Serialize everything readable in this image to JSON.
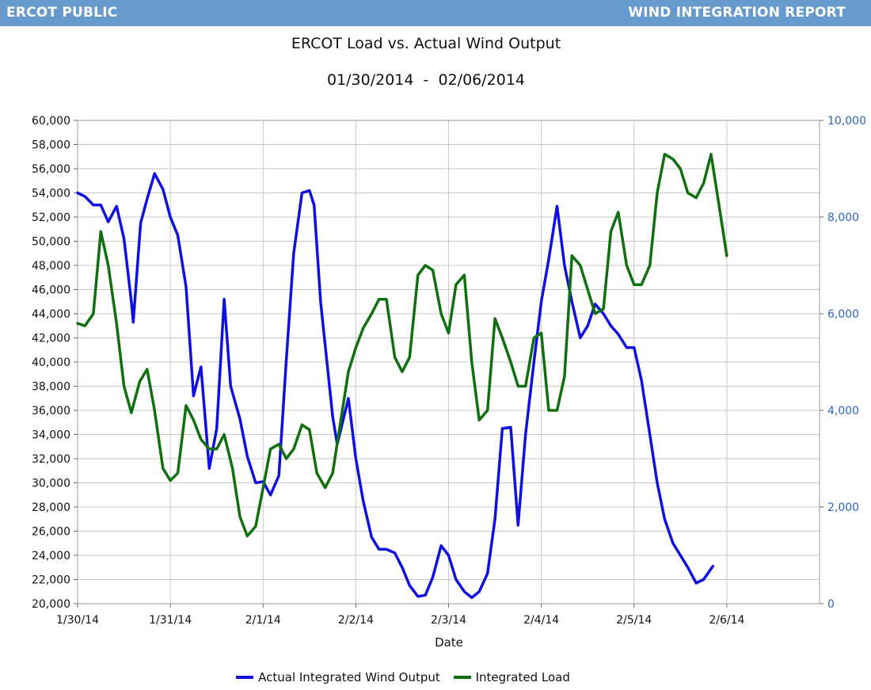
{
  "header": {
    "left": "ERCOT PUBLIC",
    "right": "WIND INTEGRATION REPORT",
    "color": "#6699cc"
  },
  "chart_data": {
    "type": "line",
    "title": "ERCOT Load vs. Actual Wind Output",
    "subtitle": "01/30/2014  -  02/06/2014",
    "xlabel": "Date",
    "ylabel_left": "",
    "ylabel_right": "",
    "x_ticks": [
      "1/30/14",
      "1/31/14",
      "2/1/14",
      "2/2/14",
      "2/3/14",
      "2/4/14",
      "2/5/14",
      "2/6/14"
    ],
    "x_range_days": [
      0,
      8
    ],
    "y_left": {
      "ticks": [
        "60,000",
        "58,000",
        "56,000",
        "54,000",
        "52,000",
        "50,000",
        "48,000",
        "46,000",
        "44,000",
        "42,000",
        "40,000",
        "38,000",
        "36,000",
        "34,000",
        "32,000",
        "30,000",
        "28,000",
        "26,000",
        "24,000",
        "22,000",
        "20,000"
      ],
      "min": 20000,
      "max": 60000
    },
    "y_right": {
      "ticks": [
        "10,000",
        "8,000",
        "6,000",
        "4,000",
        "2,000",
        "0"
      ],
      "min": 0,
      "max": 10000
    },
    "grid": true,
    "legend_position": "bottom",
    "series": [
      {
        "name": "Actual Integrated Wind Output",
        "axis": "left",
        "color": "#1010e0",
        "points": [
          [
            0,
            54000
          ],
          [
            0.08,
            53700
          ],
          [
            0.17,
            53000
          ],
          [
            0.25,
            53000
          ],
          [
            0.33,
            51600
          ],
          [
            0.42,
            52900
          ],
          [
            0.5,
            50200
          ],
          [
            0.58,
            45000
          ],
          [
            0.6,
            43300
          ],
          [
            0.68,
            51500
          ],
          [
            0.75,
            53500
          ],
          [
            0.83,
            55600
          ],
          [
            0.92,
            54300
          ],
          [
            1.0,
            52000
          ],
          [
            1.08,
            50500
          ],
          [
            1.17,
            46200
          ],
          [
            1.25,
            37200
          ],
          [
            1.33,
            39600
          ],
          [
            1.42,
            31200
          ],
          [
            1.5,
            34500
          ],
          [
            1.58,
            45200
          ],
          [
            1.65,
            38000
          ],
          [
            1.75,
            35300
          ],
          [
            1.83,
            32200
          ],
          [
            1.92,
            30000
          ],
          [
            2.0,
            30100
          ],
          [
            2.08,
            29000
          ],
          [
            2.17,
            30600
          ],
          [
            2.25,
            40100
          ],
          [
            2.33,
            49000
          ],
          [
            2.42,
            54000
          ],
          [
            2.5,
            54200
          ],
          [
            2.55,
            53000
          ],
          [
            2.62,
            45000
          ],
          [
            2.75,
            35500
          ],
          [
            2.8,
            33200
          ],
          [
            2.92,
            37000
          ],
          [
            3.0,
            32000
          ],
          [
            3.08,
            28500
          ],
          [
            3.17,
            25500
          ],
          [
            3.25,
            24500
          ],
          [
            3.33,
            24500
          ],
          [
            3.42,
            24200
          ],
          [
            3.5,
            23000
          ],
          [
            3.58,
            21500
          ],
          [
            3.67,
            20600
          ],
          [
            3.75,
            20700
          ],
          [
            3.83,
            22200
          ],
          [
            3.92,
            24800
          ],
          [
            4.0,
            24000
          ],
          [
            4.08,
            22000
          ],
          [
            4.17,
            21000
          ],
          [
            4.25,
            20500
          ],
          [
            4.33,
            21000
          ],
          [
            4.42,
            22500
          ],
          [
            4.5,
            27000
          ],
          [
            4.58,
            34500
          ],
          [
            4.67,
            34600
          ],
          [
            4.75,
            26500
          ],
          [
            4.83,
            34000
          ],
          [
            4.92,
            40000
          ],
          [
            5.0,
            45000
          ],
          [
            5.08,
            48500
          ],
          [
            5.17,
            52900
          ],
          [
            5.25,
            48000
          ],
          [
            5.33,
            45000
          ],
          [
            5.42,
            42000
          ],
          [
            5.5,
            43000
          ],
          [
            5.58,
            44800
          ],
          [
            5.67,
            44000
          ],
          [
            5.75,
            43000
          ],
          [
            5.83,
            42300
          ],
          [
            5.92,
            41200
          ],
          [
            6.0,
            41200
          ],
          [
            6.08,
            38500
          ],
          [
            6.17,
            34000
          ],
          [
            6.25,
            30000
          ],
          [
            6.33,
            27000
          ],
          [
            6.42,
            25000
          ],
          [
            6.5,
            24000
          ],
          [
            6.58,
            23000
          ],
          [
            6.67,
            21700
          ],
          [
            6.75,
            22000
          ],
          [
            6.85,
            23100
          ]
        ]
      },
      {
        "name": "Integrated Load",
        "axis": "right",
        "color": "#107010",
        "points": [
          [
            0,
            5800
          ],
          [
            0.08,
            5750
          ],
          [
            0.17,
            6000
          ],
          [
            0.25,
            7700
          ],
          [
            0.33,
            7000
          ],
          [
            0.42,
            5800
          ],
          [
            0.5,
            4500
          ],
          [
            0.58,
            3950
          ],
          [
            0.67,
            4600
          ],
          [
            0.75,
            4850
          ],
          [
            0.83,
            4000
          ],
          [
            0.92,
            2800
          ],
          [
            1.0,
            2550
          ],
          [
            1.08,
            2700
          ],
          [
            1.17,
            4100
          ],
          [
            1.25,
            3800
          ],
          [
            1.33,
            3400
          ],
          [
            1.42,
            3200
          ],
          [
            1.5,
            3200
          ],
          [
            1.58,
            3500
          ],
          [
            1.67,
            2800
          ],
          [
            1.75,
            1800
          ],
          [
            1.83,
            1400
          ],
          [
            1.92,
            1600
          ],
          [
            2.0,
            2400
          ],
          [
            2.08,
            3200
          ],
          [
            2.17,
            3300
          ],
          [
            2.25,
            3000
          ],
          [
            2.33,
            3200
          ],
          [
            2.42,
            3700
          ],
          [
            2.5,
            3600
          ],
          [
            2.58,
            2700
          ],
          [
            2.67,
            2400
          ],
          [
            2.75,
            2700
          ],
          [
            2.83,
            3700
          ],
          [
            2.92,
            4800
          ],
          [
            3.0,
            5300
          ],
          [
            3.08,
            5700
          ],
          [
            3.17,
            6000
          ],
          [
            3.25,
            6300
          ],
          [
            3.33,
            6300
          ],
          [
            3.42,
            5100
          ],
          [
            3.5,
            4800
          ],
          [
            3.58,
            5100
          ],
          [
            3.67,
            6800
          ],
          [
            3.75,
            7000
          ],
          [
            3.83,
            6900
          ],
          [
            3.92,
            6000
          ],
          [
            4.0,
            5600
          ],
          [
            4.08,
            6600
          ],
          [
            4.17,
            6800
          ],
          [
            4.25,
            5000
          ],
          [
            4.33,
            3800
          ],
          [
            4.42,
            4000
          ],
          [
            4.5,
            5900
          ],
          [
            4.58,
            5500
          ],
          [
            4.67,
            5000
          ],
          [
            4.75,
            4500
          ],
          [
            4.83,
            4500
          ],
          [
            4.92,
            5500
          ],
          [
            5.0,
            5600
          ],
          [
            5.08,
            4000
          ],
          [
            5.17,
            4000
          ],
          [
            5.25,
            4700
          ],
          [
            5.33,
            7200
          ],
          [
            5.42,
            7000
          ],
          [
            5.5,
            6500
          ],
          [
            5.58,
            6000
          ],
          [
            5.67,
            6100
          ],
          [
            5.75,
            7700
          ],
          [
            5.83,
            8100
          ],
          [
            5.92,
            7000
          ],
          [
            6.0,
            6600
          ],
          [
            6.08,
            6600
          ],
          [
            6.17,
            7000
          ],
          [
            6.25,
            8500
          ],
          [
            6.33,
            9300
          ],
          [
            6.42,
            9200
          ],
          [
            6.5,
            9000
          ],
          [
            6.58,
            8500
          ],
          [
            6.67,
            8400
          ],
          [
            6.75,
            8700
          ],
          [
            6.83,
            9300
          ],
          [
            6.92,
            8200
          ],
          [
            7.0,
            7200
          ]
        ]
      }
    ]
  }
}
